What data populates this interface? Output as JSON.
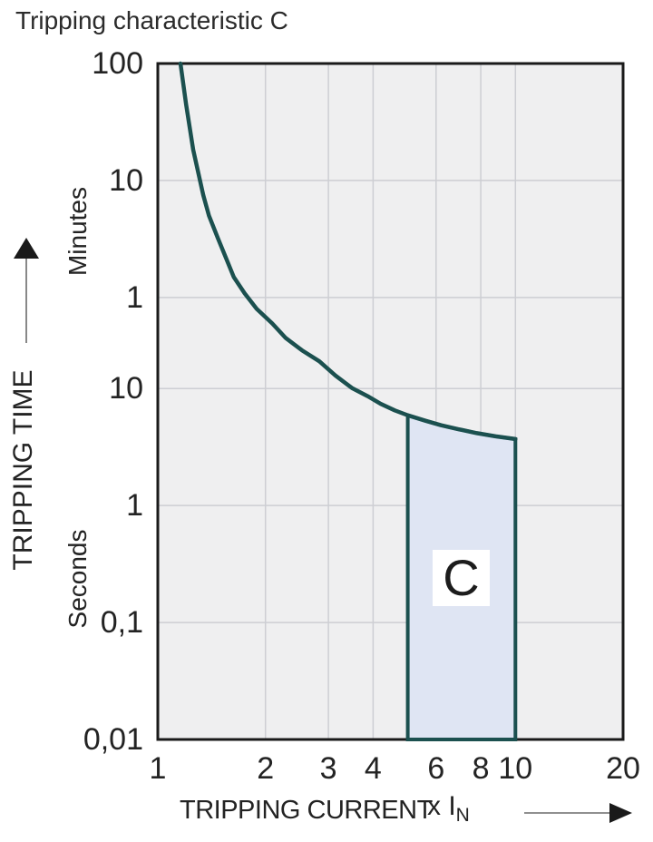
{
  "title": "Tripping characteristic C",
  "axes": {
    "y_title": "TRIPPING TIME",
    "y_unit_upper": "Minutes",
    "y_unit_lower": "Seconds",
    "x_title": "TRIPPING CURRENT",
    "x_unit_prefix": "x I",
    "x_unit_sub": "N"
  },
  "chart_data": {
    "type": "line",
    "title": "Tripping characteristic C",
    "xlabel": "TRIPPING CURRENT (x IN)",
    "ylabel": "TRIPPING TIME (Minutes / Seconds)",
    "x_scale": "log",
    "y_scale": "log",
    "x_range": [
      1,
      20
    ],
    "y_range_seconds": [
      0.01,
      6000
    ],
    "grid": true,
    "x_ticks": [
      {
        "label": "1",
        "value": 1
      },
      {
        "label": "2",
        "value": 2
      },
      {
        "label": "3",
        "value": 3
      },
      {
        "label": "4",
        "value": 4
      },
      {
        "label": "6",
        "value": 6
      },
      {
        "label": "8",
        "value": 8
      },
      {
        "label": "10",
        "value": 10
      },
      {
        "label": "20",
        "value": 20
      }
    ],
    "y_ticks": [
      {
        "label": "100",
        "unit": "minutes",
        "seconds": 6000
      },
      {
        "label": "10",
        "unit": "minutes",
        "seconds": 600
      },
      {
        "label": "1",
        "unit": "minutes",
        "seconds": 60
      },
      {
        "label": "10",
        "unit": "seconds",
        "seconds": 10
      },
      {
        "label": "1",
        "unit": "seconds",
        "seconds": 1
      },
      {
        "label": "0,1",
        "unit": "seconds",
        "seconds": 0.1
      },
      {
        "label": "0,01",
        "unit": "seconds",
        "seconds": 0.01
      }
    ],
    "x_gridlines": [
      2,
      3,
      4,
      6,
      8,
      10
    ],
    "y_gridlines_seconds": [
      600,
      60,
      10,
      1,
      0.1
    ],
    "curve": {
      "name": "thermal-magnetic tripping curve C",
      "points_x_seconds": [
        [
          1.157,
          6000
        ],
        [
          1.2,
          2680
        ],
        [
          1.256,
          1100
        ],
        [
          1.34,
          450
        ],
        [
          1.39,
          300
        ],
        [
          1.47,
          195
        ],
        [
          1.63,
          90
        ],
        [
          1.75,
          65
        ],
        [
          1.89,
          48
        ],
        [
          2.09,
          36
        ],
        [
          2.28,
          27
        ],
        [
          2.53,
          21.2
        ],
        [
          2.83,
          17.1
        ],
        [
          3.14,
          12.9
        ],
        [
          3.49,
          10.1
        ],
        [
          3.86,
          8.6
        ],
        [
          4.2,
          7.4
        ],
        [
          4.6,
          6.5
        ],
        [
          5.0,
          5.9
        ],
        [
          5.6,
          5.3
        ],
        [
          6.2,
          4.85
        ],
        [
          6.9,
          4.5
        ],
        [
          7.8,
          4.15
        ],
        [
          8.8,
          3.9
        ],
        [
          10.0,
          3.7
        ]
      ]
    },
    "region": {
      "label": "C",
      "x_range": [
        5,
        10
      ],
      "top": "follows curve (5.9 s at 5 xIN to 3.7 s at 10 xIN)",
      "bottom_seconds": 0.01
    },
    "colors": {
      "curve": "#1b504f",
      "region_fill": "#dfe5f3",
      "region_border": "#1b504f",
      "plot_bg": "#efeff0",
      "grid": "#cdced3",
      "frame": "#1a1a1a",
      "text": "#262626",
      "arrow_line": "#6b6b6b",
      "arrow_head": "#1a1a1a"
    }
  }
}
